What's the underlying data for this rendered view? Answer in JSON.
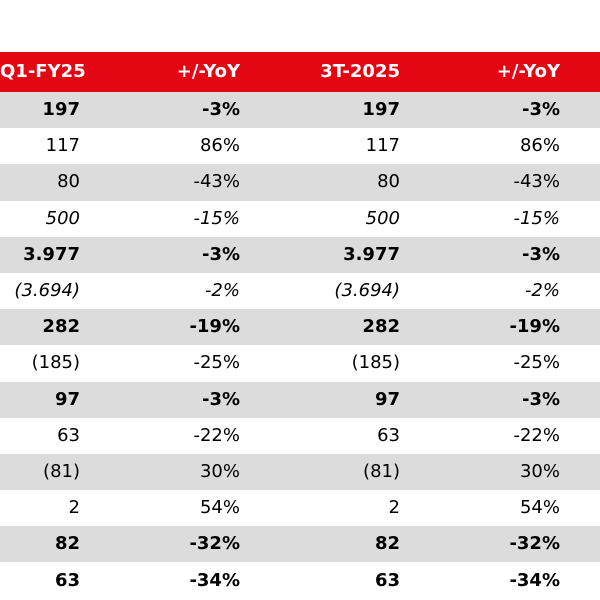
{
  "colors": {
    "header_background": "#e30613",
    "header_text": "#ffffff",
    "shaded_row": "#dcdcdc"
  },
  "header": {
    "col1": "Q1-FY25",
    "col2": "+/-YoY",
    "col3": "3T-2025",
    "col4": "+/-YoY"
  },
  "rows": [
    {
      "c1": "197",
      "c2": "-3%",
      "c3": "197",
      "c4": "-3%"
    },
    {
      "c1": "117",
      "c2": "86%",
      "c3": "117",
      "c4": "86%"
    },
    {
      "c1": "80",
      "c2": "-43%",
      "c3": "80",
      "c4": "-43%"
    },
    {
      "c1": "500",
      "c2": "-15%",
      "c3": "500",
      "c4": "-15%"
    },
    {
      "c1": "3.977",
      "c2": "-3%",
      "c3": "3.977",
      "c4": "-3%"
    },
    {
      "c1": "(3.694)",
      "c2": "-2%",
      "c3": "(3.694)",
      "c4": "-2%"
    },
    {
      "c1": "282",
      "c2": "-19%",
      "c3": "282",
      "c4": "-19%"
    },
    {
      "c1": "(185)",
      "c2": "-25%",
      "c3": "(185)",
      "c4": "-25%"
    },
    {
      "c1": "97",
      "c2": "-3%",
      "c3": "97",
      "c4": "-3%"
    },
    {
      "c1": "63",
      "c2": "-22%",
      "c3": "63",
      "c4": "-22%"
    },
    {
      "c1": "(81)",
      "c2": "30%",
      "c3": "(81)",
      "c4": "30%"
    },
    {
      "c1": "2",
      "c2": "54%",
      "c3": "2",
      "c4": "54%"
    },
    {
      "c1": "82",
      "c2": "-32%",
      "c3": "82",
      "c4": "-32%"
    },
    {
      "c1": "63",
      "c2": "-34%",
      "c3": "63",
      "c4": "-34%"
    }
  ]
}
